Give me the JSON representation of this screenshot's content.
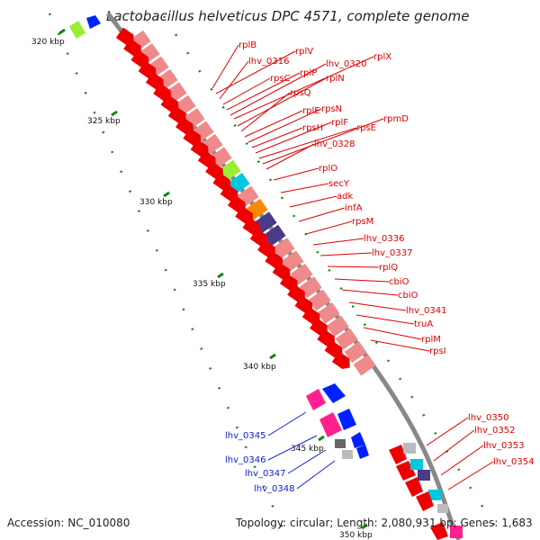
{
  "title": "Lactobacillus helveticus DPC 4571, complete genome",
  "footer": {
    "accession": "Accession: NC_010080",
    "stats": "Topology: circular; Length: 2,080,931 bp; Genes: 1,683"
  },
  "ticks": [
    "320 kbp",
    "325 kbp",
    "330 kbp",
    "335 kbp",
    "340 kbp",
    "345 kbp",
    "350 kbp"
  ],
  "colors": {
    "cds": "#ee0000",
    "rna": "#f08a8a",
    "accent_green": "#99ee33",
    "cyan": "#00c8e0",
    "orange": "#ff8800",
    "purple": "#4a3a8a",
    "magenta": "#ff2090",
    "blue": "#0020ff",
    "gray": "#bbbbbb"
  },
  "labels_red": [
    "rplB",
    "rplV",
    "lhv_0316",
    "rpsC",
    "rplP",
    "lhv_0320",
    "rplX",
    "rplN",
    "rpsQ",
    "rplE",
    "rpsN",
    "rpsH",
    "rplF",
    "rpsE",
    "rpmD",
    "lhv_0328",
    "rplO",
    "secY",
    "adk",
    "infA",
    "rpsM",
    "lhv_0336",
    "lhv_0337",
    "rplQ",
    "cbiO",
    "cbiO",
    "lhv_0341",
    "truA",
    "rplM",
    "rpsI",
    "lhv_0350",
    "lhv_0352",
    "lhv_0353",
    "lhv_0354"
  ],
  "labels_blue": [
    "lhv_0345",
    "lhv_0346",
    "lhv_0347",
    "lhv_0348"
  ]
}
